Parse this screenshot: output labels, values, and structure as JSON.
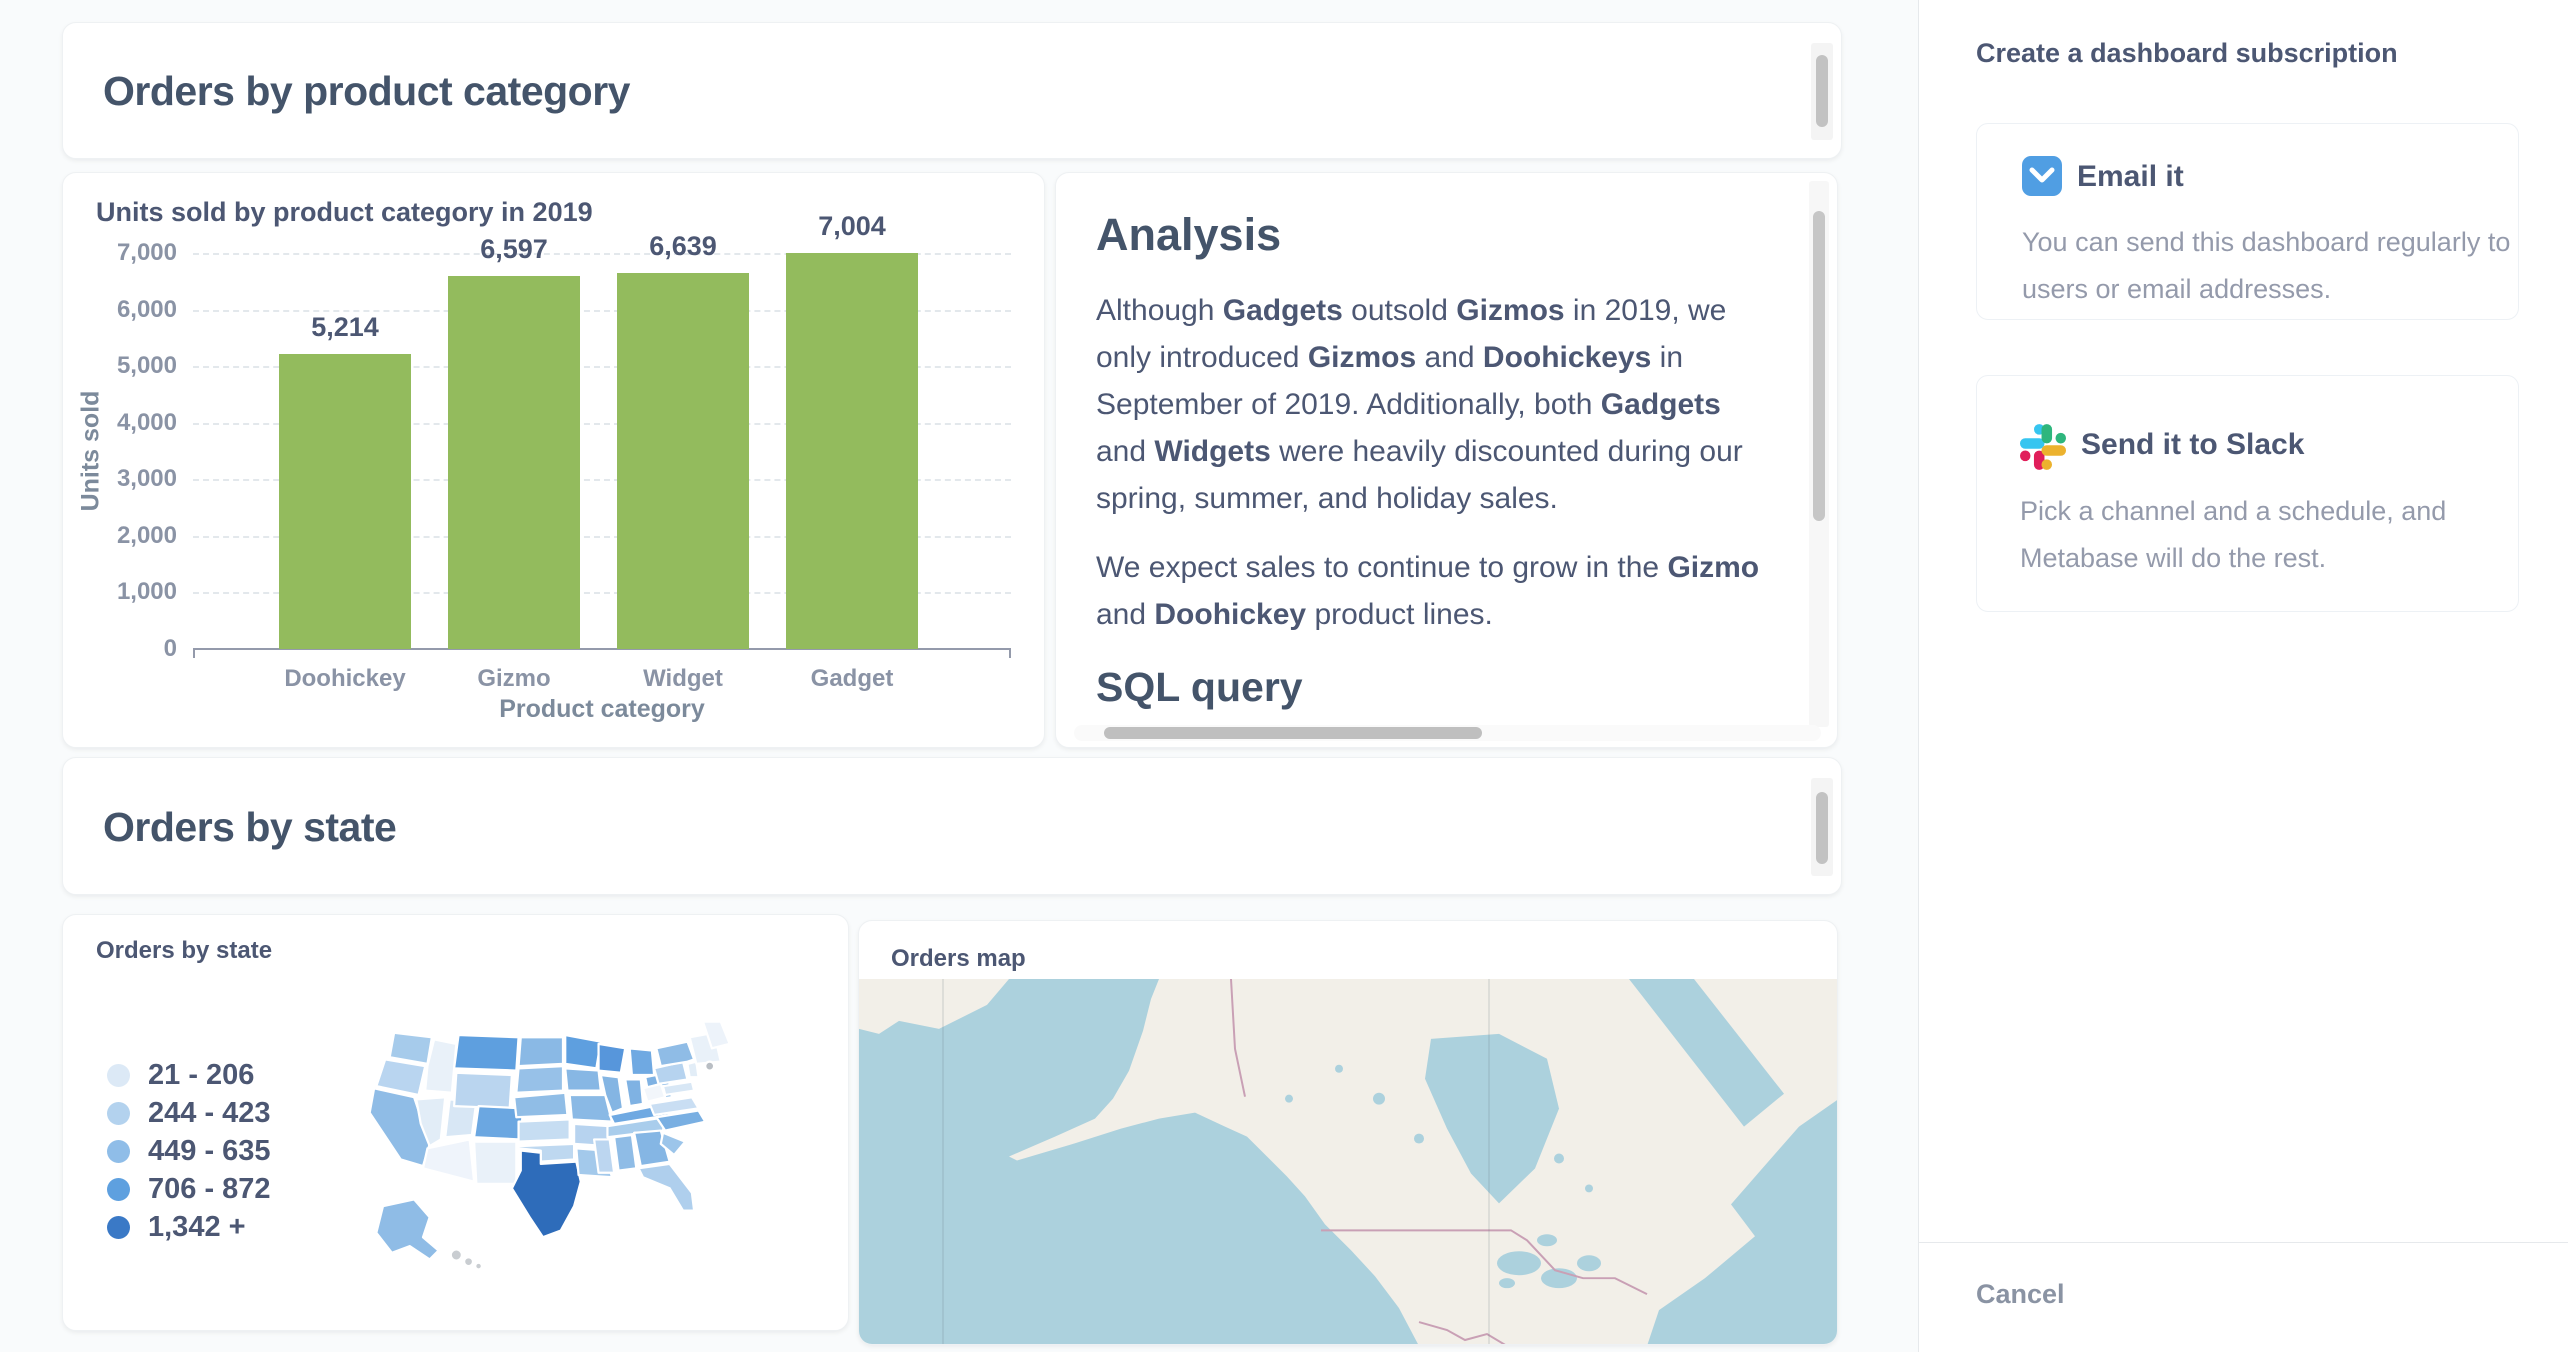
{
  "colors": {
    "page_bg": "#F9FBFC",
    "accent_blue": "#509EE3",
    "bar_green": "#93BB5D",
    "map_ocean": "#ACD1DD",
    "map_land": "#F2EFE8",
    "map_border": "#C9A0B5",
    "map_seam": "rgba(100,120,130,0.15)",
    "slack_blue": "#36C5F0",
    "slack_green": "#2EB67D",
    "slack_red": "#E01E5A",
    "slack_yellow": "#ECB22E"
  },
  "dashboard": {
    "heading1": "Orders by product category",
    "heading2": "Orders by state"
  },
  "chart_data": {
    "type": "bar",
    "title": "Units sold by product category in 2019",
    "categories": [
      "Doohickey",
      "Gizmo",
      "Widget",
      "Gadget"
    ],
    "values": [
      5214,
      6597,
      6639,
      7004
    ],
    "value_labels": [
      "5,214",
      "6,597",
      "6,639",
      "7,004"
    ],
    "xlabel": "Product category",
    "ylabel": "Units sold",
    "ylim": [
      0,
      7000
    ],
    "ytick_step": 1000,
    "ytick_labels": [
      "0",
      "1,000",
      "2,000",
      "3,000",
      "4,000",
      "5,000",
      "6,000",
      "7,000"
    ],
    "grid": true,
    "legend": "none",
    "bar_color": "#93BB5D"
  },
  "analysis_card": {
    "heading": "Analysis",
    "para1": [
      {
        "t": "Although "
      },
      {
        "t": "Gadgets",
        "b": 1
      },
      {
        "t": " outsold "
      },
      {
        "t": "Gizmos",
        "b": 1
      },
      {
        "t": " in 2019, we only introduced "
      },
      {
        "t": "Gizmos",
        "b": 1
      },
      {
        "t": " and "
      },
      {
        "t": "Doohickeys",
        "b": 1
      },
      {
        "t": " in September of 2019. Additionally, both "
      },
      {
        "t": "Gadgets",
        "b": 1
      },
      {
        "t": " and "
      },
      {
        "t": "Widgets",
        "b": 1
      },
      {
        "t": " were heavily discounted during our spring, summer, and holiday sales."
      }
    ],
    "para2": [
      {
        "t": "We expect sales to continue to grow in the "
      },
      {
        "t": "Gizmo",
        "b": 1
      },
      {
        "t": " and "
      },
      {
        "t": "Doohickey",
        "b": 1
      },
      {
        "t": " product lines."
      }
    ],
    "subheading": "SQL query"
  },
  "state_card": {
    "title": "Orders by state",
    "legend": [
      {
        "label": "21 - 206",
        "color": "#DCE9F6"
      },
      {
        "label": "244 - 423",
        "color": "#B3D2EE"
      },
      {
        "label": "449 - 635",
        "color": "#8FBDE8"
      },
      {
        "label": "706 - 872",
        "color": "#5EA0DF"
      },
      {
        "label": "1,342 +",
        "color": "#3A79C6"
      }
    ]
  },
  "choropleth": {
    "states": {
      "WA": "#A6CBEB",
      "OR": "#B9D5F0",
      "CA": "#8FBCE6",
      "ID": "#E9F1F9",
      "NV": "#E2EDF7",
      "UT": "#D8E7F5",
      "AZ": "#EFF4FB",
      "MT": "#5E9FDF",
      "WY": "#BAD5EF",
      "CO": "#6BA7E1",
      "NM": "#E9F1F9",
      "ND": "#8AB9E5",
      "SD": "#97C1E8",
      "NE": "#90BDE6",
      "KS": "#C6DDF2",
      "OK": "#BED8F0",
      "TX": "#2E6CBA",
      "MN": "#5E9FDF",
      "IA": "#87B7E4",
      "MO": "#8AB9E5",
      "AR": "#B7D3EF",
      "LA": "#A3C9EB",
      "WI": "#5796DB",
      "IL": "#84B5E3",
      "MI": "#6FA9E2",
      "IN": "#7FB2E3",
      "OH": "#7FB2E3",
      "KY": "#6FA9E2",
      "TN": "#A9CDEC",
      "MS": "#BCD6F0",
      "AL": "#8FBCE6",
      "GA": "#85B6E4",
      "FL": "#AFCFED",
      "SC": "#9CC5EA",
      "NC": "#79AFE2",
      "VA": "#C9DEF3",
      "WV": "#F2F6FB",
      "PA": "#B6D3EF",
      "NY": "#8FBCE6",
      "NEng": "#E9F1F9",
      "ME": "#EDF3FA",
      "NJ": "#E2EDF7",
      "MD": "#D8E7F5",
      "AK": "#8FBCE6",
      "HI": "#C9CDD1",
      "RI": "#B9BEC4"
    }
  },
  "map_card": {
    "title": "Orders map"
  },
  "sidebar": {
    "title": "Create a dashboard subscription",
    "email": {
      "title": "Email it",
      "description": "You can send this dashboard regularly to users or email addresses."
    },
    "slack": {
      "title": "Send it to Slack",
      "description": "Pick a channel and a schedule, and Metabase will do the rest."
    },
    "cancel_label": "Cancel"
  }
}
